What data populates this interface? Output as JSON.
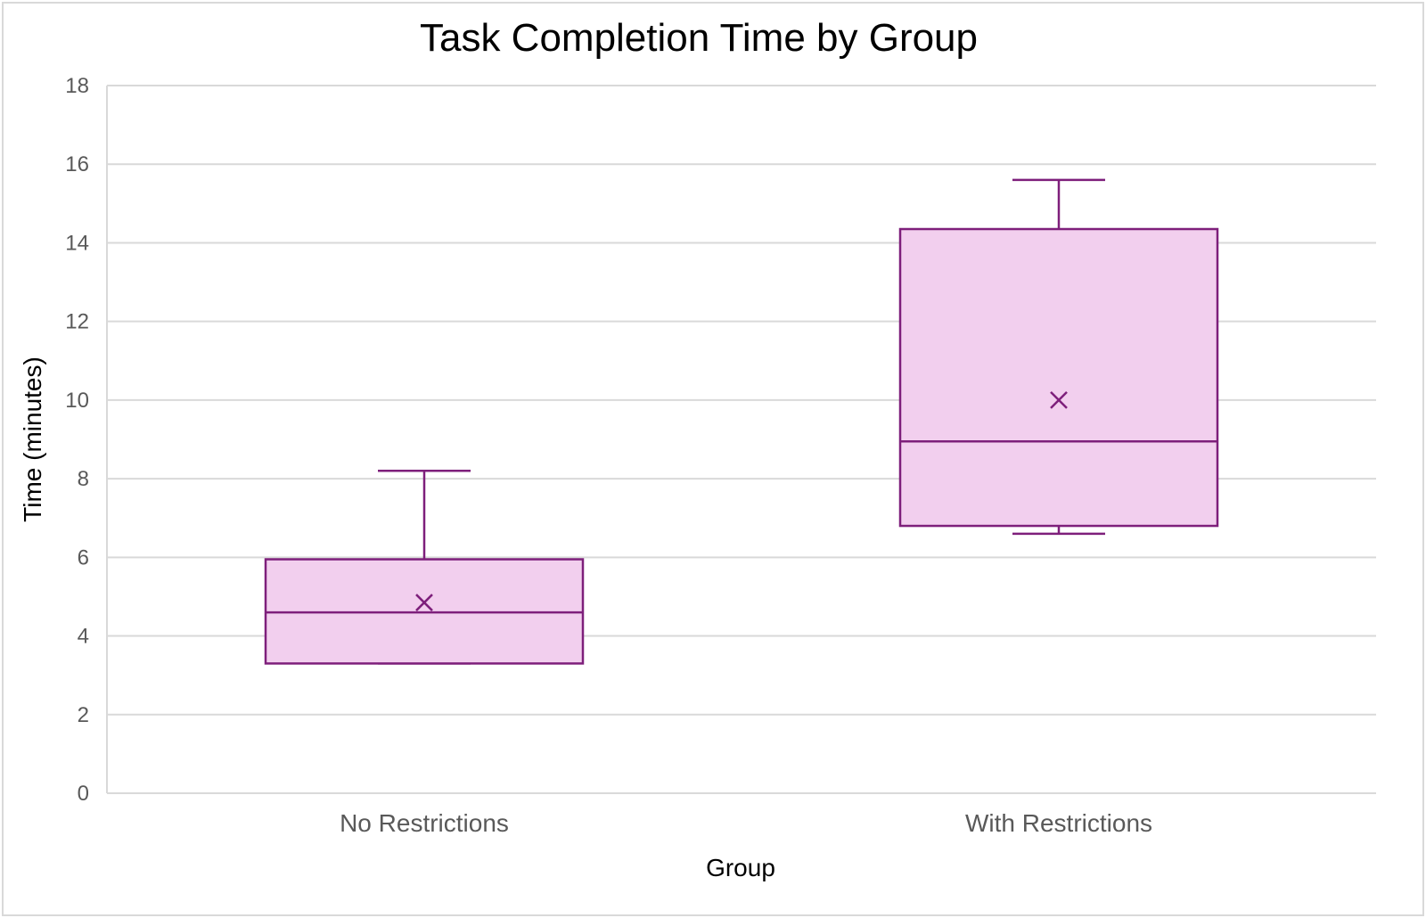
{
  "chart_data": {
    "type": "box",
    "title": "Task Completion Time by Group",
    "xlabel": "Group",
    "ylabel": "Time (minutes)",
    "ylim": [
      0,
      18
    ],
    "yticks": [
      0,
      2,
      4,
      6,
      8,
      10,
      12,
      14,
      16,
      18
    ],
    "grid": true,
    "categories": [
      "No Restrictions",
      "With Restrictions"
    ],
    "boxes": [
      {
        "category": "No Restrictions",
        "min": 3.3,
        "q1": 3.3,
        "median": 4.6,
        "mean": 4.85,
        "q3": 5.95,
        "max": 8.2
      },
      {
        "category": "With Restrictions",
        "min": 6.6,
        "q1": 6.8,
        "median": 8.95,
        "mean": 10.0,
        "q3": 14.35,
        "max": 15.6
      }
    ],
    "colors": {
      "box_fill": "#f2cfee",
      "box_stroke": "#7e1f7b",
      "grid": "#d9d9d9",
      "axis_text": "#595959"
    }
  }
}
